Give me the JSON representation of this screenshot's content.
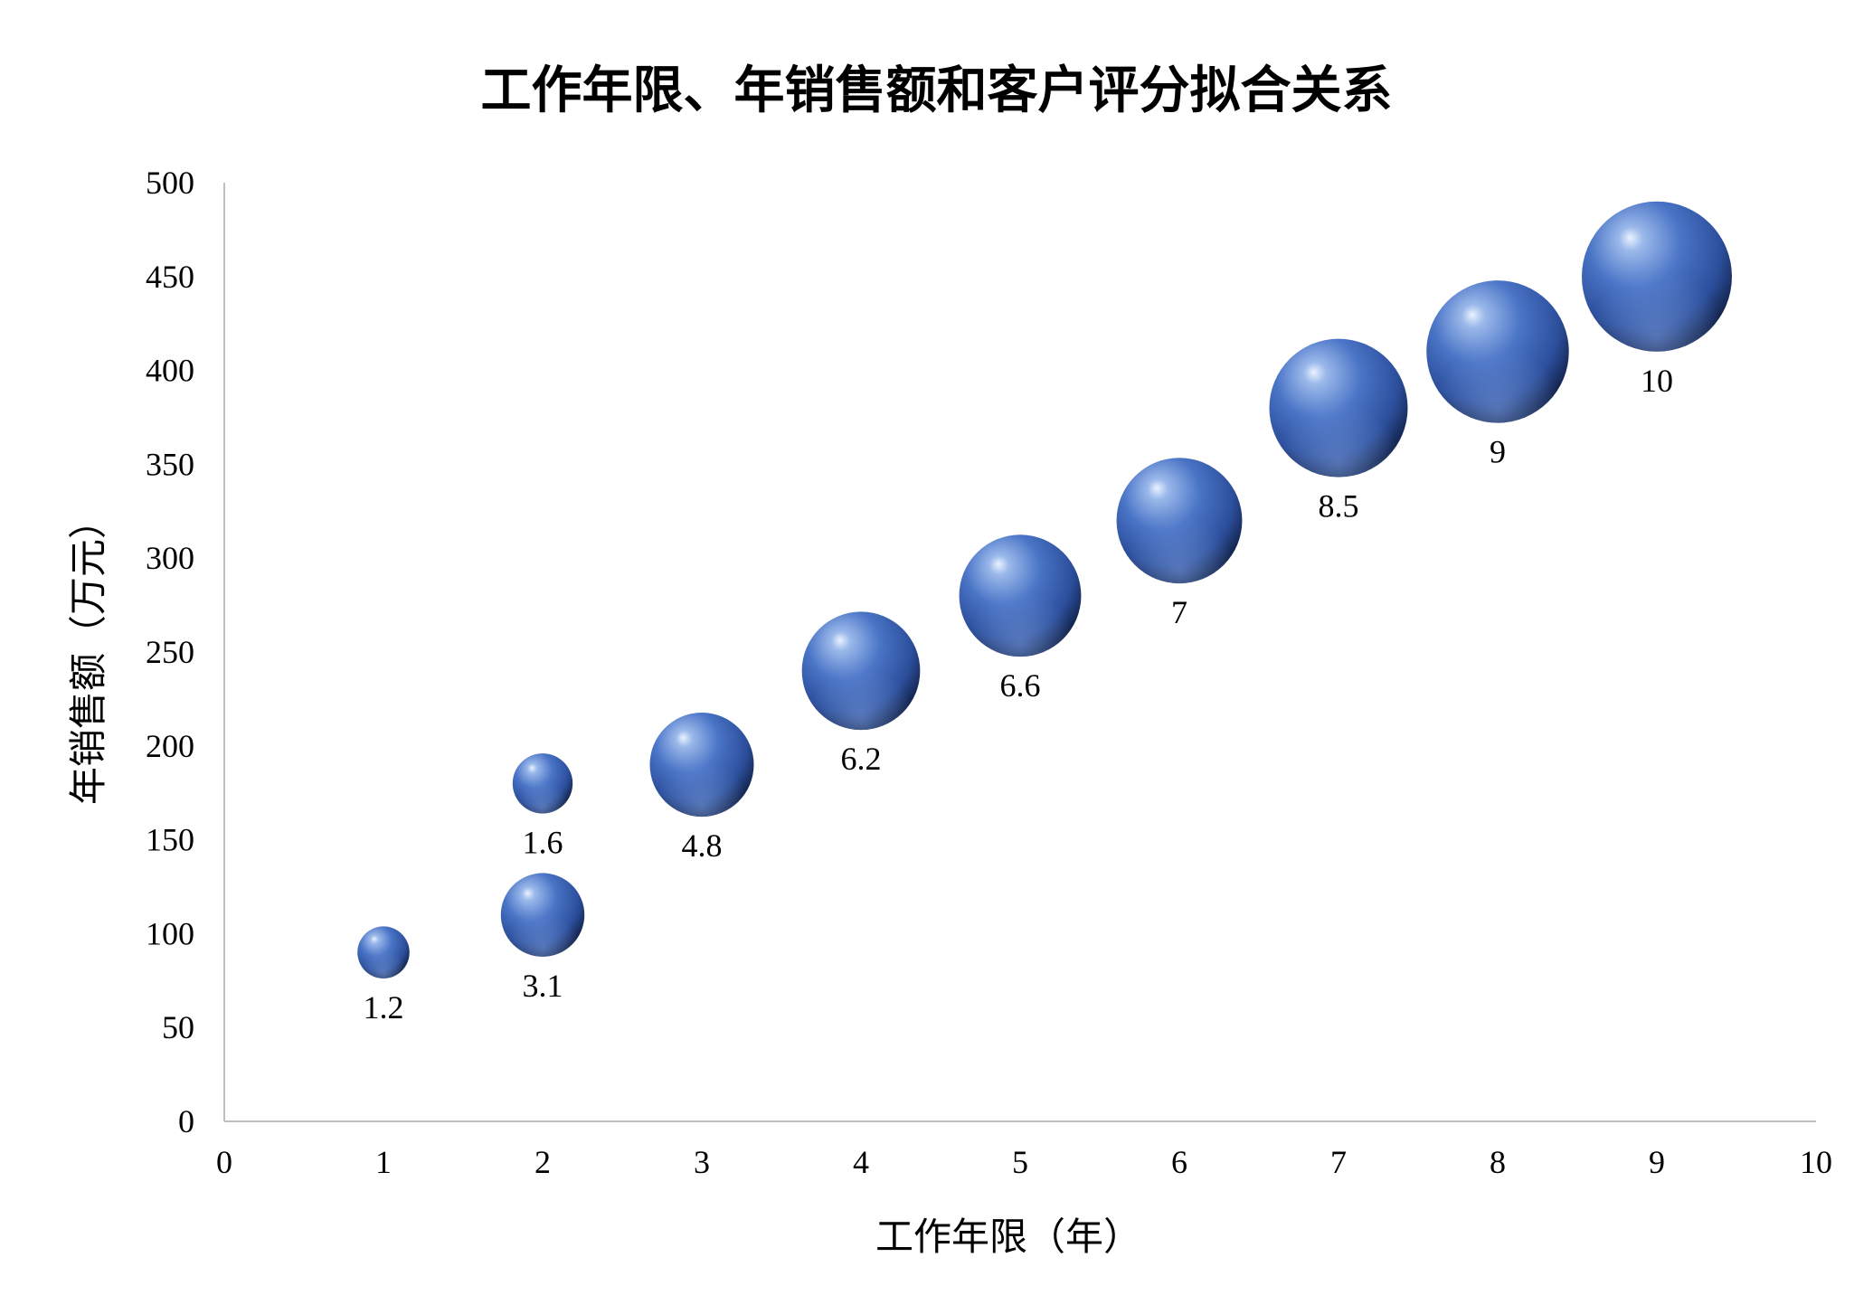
{
  "chart_data": {
    "type": "bubble",
    "title": "工作年限、年销售额和客户评分拟合关系",
    "xlabel": "工作年限（年）",
    "ylabel": "年销售额（万元）",
    "xlim": [
      0,
      10
    ],
    "ylim": [
      0,
      500
    ],
    "xticks": [
      "0",
      "1",
      "2",
      "3",
      "4",
      "5",
      "6",
      "7",
      "8",
      "9",
      "10"
    ],
    "yticks": [
      "0",
      "50",
      "100",
      "150",
      "200",
      "250",
      "300",
      "350",
      "400",
      "450",
      "500"
    ],
    "points": [
      {
        "x": 1,
        "y": 90,
        "size": 1.2,
        "label": "1.2"
      },
      {
        "x": 2,
        "y": 110,
        "size": 3.1,
        "label": "3.1"
      },
      {
        "x": 2,
        "y": 180,
        "size": 1.6,
        "label": "1.6"
      },
      {
        "x": 3,
        "y": 190,
        "size": 4.8,
        "label": "4.8"
      },
      {
        "x": 4,
        "y": 240,
        "size": 6.2,
        "label": "6.2"
      },
      {
        "x": 5,
        "y": 280,
        "size": 6.6,
        "label": "6.6"
      },
      {
        "x": 6,
        "y": 320,
        "size": 7,
        "label": "7"
      },
      {
        "x": 7,
        "y": 380,
        "size": 8.5,
        "label": "8.5"
      },
      {
        "x": 8,
        "y": 410,
        "size": 9,
        "label": "9"
      },
      {
        "x": 9,
        "y": 450,
        "size": 10,
        "label": "10"
      }
    ],
    "grid": false,
    "legend": "none",
    "bubble_color": "#3a64b8"
  }
}
